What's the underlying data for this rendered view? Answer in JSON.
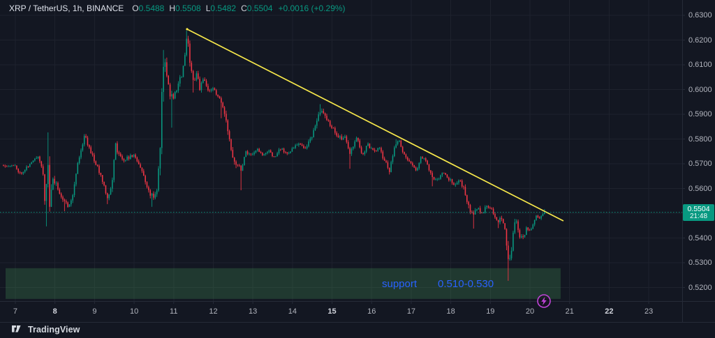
{
  "header": {
    "symbol_title": "XRP / TetherUS, 1h, BINANCE",
    "ohlc": [
      {
        "label": "O",
        "value": "0.5488"
      },
      {
        "label": "H",
        "value": "0.5508"
      },
      {
        "label": "L",
        "value": "0.5482"
      },
      {
        "label": "C",
        "value": "0.5504"
      }
    ],
    "change": "+0.0016 (+0.29%)"
  },
  "price_axis": {
    "labels": [
      {
        "price": 0.63,
        "label": "0.6300"
      },
      {
        "price": 0.62,
        "label": "0.6200"
      },
      {
        "price": 0.61,
        "label": "0.6100"
      },
      {
        "price": 0.6,
        "label": "0.6000"
      },
      {
        "price": 0.59,
        "label": "0.5900"
      },
      {
        "price": 0.58,
        "label": "0.5800"
      },
      {
        "price": 0.57,
        "label": "0.5700"
      },
      {
        "price": 0.56,
        "label": "0.5600"
      },
      {
        "price": 0.54,
        "label": "0.5400"
      },
      {
        "price": 0.53,
        "label": "0.5300"
      },
      {
        "price": 0.52,
        "label": "0.5200"
      }
    ],
    "badge": {
      "price": "0.5504",
      "countdown": "21:48"
    }
  },
  "time_axis": {
    "labels": [
      {
        "day": 7,
        "label": "7",
        "bold": false
      },
      {
        "day": 8,
        "label": "8",
        "bold": true
      },
      {
        "day": 9,
        "label": "9",
        "bold": false
      },
      {
        "day": 10,
        "label": "10",
        "bold": false
      },
      {
        "day": 11,
        "label": "11",
        "bold": false
      },
      {
        "day": 12,
        "label": "12",
        "bold": false
      },
      {
        "day": 13,
        "label": "13",
        "bold": false
      },
      {
        "day": 14,
        "label": "14",
        "bold": false
      },
      {
        "day": 15,
        "label": "15",
        "bold": true
      },
      {
        "day": 16,
        "label": "16",
        "bold": false
      },
      {
        "day": 17,
        "label": "17",
        "bold": false
      },
      {
        "day": 18,
        "label": "18",
        "bold": false
      },
      {
        "day": 19,
        "label": "19",
        "bold": false
      },
      {
        "day": 20,
        "label": "20",
        "bold": false
      },
      {
        "day": 21,
        "label": "21",
        "bold": false
      },
      {
        "day": 22,
        "label": "22",
        "bold": true
      },
      {
        "day": 23,
        "label": "23",
        "bold": false
      }
    ]
  },
  "logo": {
    "text": "TradingView"
  },
  "chart_data": {
    "type": "candlestick",
    "title": "XRP / TetherUS, 1h, BINANCE",
    "interval": "1h",
    "last_price": 0.5504,
    "countdown": "21:48",
    "visible_range": {
      "day_min": 6.612,
      "day_max": 23.8448,
      "price_min": 0.51451,
      "price_max": 0.6362
    },
    "grid": {
      "price_step": 0.01,
      "day_step": 1
    },
    "colors": {
      "background": "#131722",
      "grid": "#1e222d",
      "border": "#262b38",
      "up": "#089981",
      "down": "#f23645",
      "trendline": "#f7e84b",
      "support_fill": "rgba(70,160,90,0.25)",
      "support_text": "#2962ff",
      "badge_bg": "#089981",
      "axis_text": "#b2b5be",
      "price_line": "#089981",
      "bolt": "#c044d8"
    },
    "trendline": {
      "from": {
        "day": 11.339,
        "price": 0.6244
      },
      "to": {
        "day": 20.845,
        "price": 0.5469
      }
    },
    "support_zone": {
      "day_from": 6.753,
      "day_to": 20.774,
      "price_from": 0.5154,
      "price_to": 0.5278,
      "label": "support",
      "range_label": "0.510-0.530"
    },
    "current_price_line": {
      "price": 0.5504,
      "style": "dotted"
    },
    "candles": {
      "start_day": 6.7,
      "end_day": 20.375,
      "per_day": 24,
      "seed": 11,
      "final_close": 0.5504,
      "anchors": [
        [
          6.7,
          0.5695,
          0.0013
        ],
        [
          7.0,
          0.569,
          0.0013
        ],
        [
          7.12,
          0.566,
          0.0013
        ],
        [
          7.28,
          0.5685,
          0.0013
        ],
        [
          7.45,
          0.571,
          0.0014
        ],
        [
          7.58,
          0.5735,
          0.0016
        ],
        [
          7.7,
          0.5665,
          0.0028
        ],
        [
          7.77,
          0.5495,
          0.0055
        ],
        [
          7.81,
          0.578,
          0.0085
        ],
        [
          7.86,
          0.553,
          0.0075
        ],
        [
          7.95,
          0.5635,
          0.003
        ],
        [
          8.08,
          0.56,
          0.002
        ],
        [
          8.2,
          0.5555,
          0.002
        ],
        [
          8.33,
          0.553,
          0.0018
        ],
        [
          8.45,
          0.5575,
          0.0022
        ],
        [
          8.57,
          0.57,
          0.0026
        ],
        [
          8.75,
          0.5815,
          0.0022
        ],
        [
          8.88,
          0.576,
          0.0018
        ],
        [
          9.02,
          0.5705,
          0.0016
        ],
        [
          9.18,
          0.5645,
          0.0018
        ],
        [
          9.33,
          0.5565,
          0.0022
        ],
        [
          9.43,
          0.5605,
          0.0028
        ],
        [
          9.53,
          0.5775,
          0.003
        ],
        [
          9.68,
          0.5715,
          0.0018
        ],
        [
          9.85,
          0.5725,
          0.0014
        ],
        [
          10.0,
          0.5735,
          0.0014
        ],
        [
          10.12,
          0.57,
          0.0015
        ],
        [
          10.25,
          0.5645,
          0.0018
        ],
        [
          10.38,
          0.5585,
          0.0022
        ],
        [
          10.5,
          0.556,
          0.0022
        ],
        [
          10.58,
          0.5605,
          0.0026
        ],
        [
          10.66,
          0.575,
          0.006
        ],
        [
          10.73,
          0.6135,
          0.0085
        ],
        [
          10.82,
          0.6055,
          0.0042
        ],
        [
          10.92,
          0.5975,
          0.0035
        ],
        [
          11.0,
          0.5965,
          0.0028
        ],
        [
          11.1,
          0.602,
          0.0026
        ],
        [
          11.22,
          0.6065,
          0.0026
        ],
        [
          11.34,
          0.621,
          0.0032
        ],
        [
          11.43,
          0.6095,
          0.0035
        ],
        [
          11.51,
          0.603,
          0.0028
        ],
        [
          11.58,
          0.607,
          0.0024
        ],
        [
          11.66,
          0.6005,
          0.0022
        ],
        [
          11.76,
          0.604,
          0.002
        ],
        [
          11.87,
          0.5995,
          0.0018
        ],
        [
          11.97,
          0.6005,
          0.0018
        ],
        [
          12.1,
          0.598,
          0.0018
        ],
        [
          12.2,
          0.5945,
          0.002
        ],
        [
          12.3,
          0.5885,
          0.0026
        ],
        [
          12.42,
          0.5795,
          0.0034
        ],
        [
          12.52,
          0.5715,
          0.003
        ],
        [
          12.62,
          0.5695,
          0.0026
        ],
        [
          12.72,
          0.568,
          0.0024
        ],
        [
          12.82,
          0.5755,
          0.002
        ],
        [
          12.95,
          0.5735,
          0.0014
        ],
        [
          13.1,
          0.576,
          0.0013
        ],
        [
          13.25,
          0.5732,
          0.0013
        ],
        [
          13.4,
          0.5752,
          0.0013
        ],
        [
          13.55,
          0.5726,
          0.0013
        ],
        [
          13.7,
          0.5762,
          0.0013
        ],
        [
          13.85,
          0.5742,
          0.0013
        ],
        [
          14.0,
          0.5758,
          0.0013
        ],
        [
          14.15,
          0.5782,
          0.0014
        ],
        [
          14.3,
          0.5762,
          0.0014
        ],
        [
          14.45,
          0.5795,
          0.0017
        ],
        [
          14.6,
          0.5865,
          0.0022
        ],
        [
          14.72,
          0.5915,
          0.0024
        ],
        [
          14.85,
          0.588,
          0.0021
        ],
        [
          15.0,
          0.5848,
          0.0019
        ],
        [
          15.12,
          0.5818,
          0.0018
        ],
        [
          15.24,
          0.58,
          0.0018
        ],
        [
          15.34,
          0.5812,
          0.0017
        ],
        [
          15.45,
          0.5745,
          0.0018
        ],
        [
          15.55,
          0.5772,
          0.0017
        ],
        [
          15.63,
          0.5808,
          0.0016
        ],
        [
          15.76,
          0.5735,
          0.0016
        ],
        [
          15.9,
          0.5778,
          0.0016
        ],
        [
          16.05,
          0.5748,
          0.0015
        ],
        [
          16.2,
          0.5762,
          0.0015
        ],
        [
          16.34,
          0.5705,
          0.0018
        ],
        [
          16.45,
          0.5675,
          0.002
        ],
        [
          16.58,
          0.5775,
          0.002
        ],
        [
          16.7,
          0.5788,
          0.0016
        ],
        [
          16.85,
          0.5722,
          0.0016
        ],
        [
          17.0,
          0.5702,
          0.0015
        ],
        [
          17.13,
          0.5672,
          0.0015
        ],
        [
          17.26,
          0.5732,
          0.0016
        ],
        [
          17.4,
          0.57,
          0.0015
        ],
        [
          17.54,
          0.5642,
          0.0018
        ],
        [
          17.68,
          0.5632,
          0.0015
        ],
        [
          17.81,
          0.5672,
          0.0015
        ],
        [
          17.94,
          0.5642,
          0.0015
        ],
        [
          18.08,
          0.5612,
          0.0016
        ],
        [
          18.21,
          0.5636,
          0.0016
        ],
        [
          18.33,
          0.5598,
          0.0022
        ],
        [
          18.45,
          0.5528,
          0.0028
        ],
        [
          18.57,
          0.5492,
          0.0026
        ],
        [
          18.68,
          0.5522,
          0.0021
        ],
        [
          18.8,
          0.5502,
          0.0017
        ],
        [
          18.92,
          0.5536,
          0.0017
        ],
        [
          19.04,
          0.5512,
          0.0016
        ],
        [
          19.17,
          0.5468,
          0.0018
        ],
        [
          19.28,
          0.5478,
          0.0018
        ],
        [
          19.38,
          0.5432,
          0.003
        ],
        [
          19.46,
          0.5298,
          0.0065
        ],
        [
          19.52,
          0.5328,
          0.005
        ],
        [
          19.6,
          0.5448,
          0.0032
        ],
        [
          19.66,
          0.5462,
          0.0022
        ],
        [
          19.74,
          0.5412,
          0.002
        ],
        [
          19.83,
          0.5395,
          0.0018
        ],
        [
          19.92,
          0.5442,
          0.0017
        ],
        [
          20.0,
          0.5425,
          0.0016
        ],
        [
          20.08,
          0.5462,
          0.0015
        ],
        [
          20.17,
          0.5492,
          0.0014
        ],
        [
          20.26,
          0.5478,
          0.0013
        ],
        [
          20.375,
          0.5504,
          0.0012
        ]
      ],
      "wick_overrides": [
        {
          "day": 7.78,
          "low": 0.5447
        },
        {
          "day": 7.81,
          "high": 0.5827
        },
        {
          "day": 8.25,
          "low": 0.5508
        },
        {
          "day": 9.34,
          "low": 0.5537
        },
        {
          "day": 10.44,
          "low": 0.5526
        },
        {
          "day": 10.73,
          "high": 0.616
        },
        {
          "day": 10.95,
          "low": 0.5846
        },
        {
          "day": 11.34,
          "high": 0.6238
        },
        {
          "day": 11.51,
          "low": 0.5988
        },
        {
          "day": 12.22,
          "low": 0.5884
        },
        {
          "day": 12.7,
          "low": 0.5593
        },
        {
          "day": 14.72,
          "high": 0.5941
        },
        {
          "day": 15.45,
          "low": 0.568
        },
        {
          "day": 16.45,
          "low": 0.5658
        },
        {
          "day": 16.6,
          "high": 0.5799
        },
        {
          "day": 17.55,
          "low": 0.5609
        },
        {
          "day": 18.57,
          "low": 0.5438
        },
        {
          "day": 19.18,
          "low": 0.544
        },
        {
          "day": 19.47,
          "low": 0.5227
        },
        {
          "day": 20.37,
          "high": 0.5517
        }
      ]
    }
  }
}
